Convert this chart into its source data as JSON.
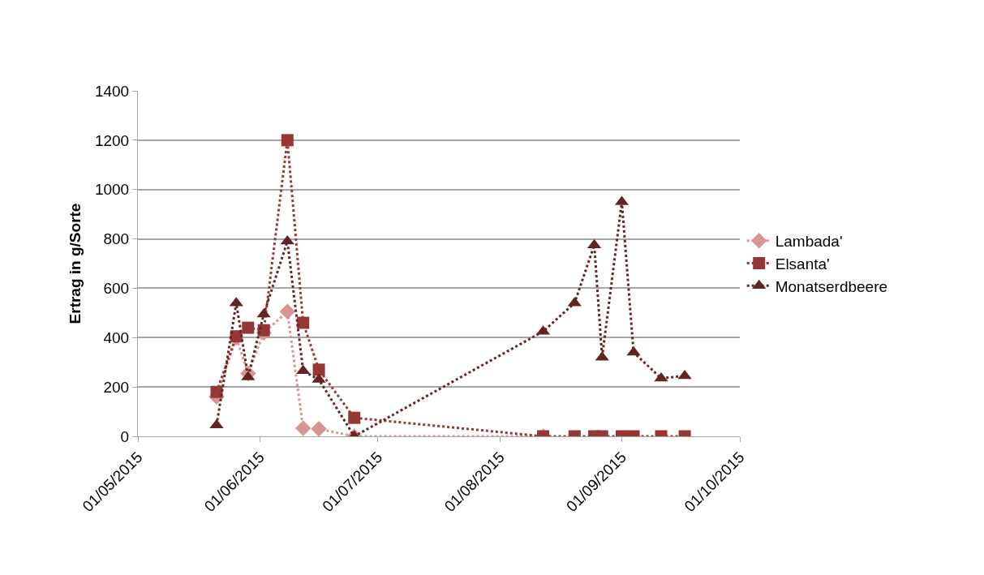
{
  "chart_data": {
    "type": "line",
    "ylabel": "Ertrag in g/Sorte",
    "xlim": [
      "2015-05-01",
      "2015-10-01"
    ],
    "xticks": [
      {
        "value": "2015-05-01",
        "label": "01/05/2015"
      },
      {
        "value": "2015-06-01",
        "label": "01/06/2015"
      },
      {
        "value": "2015-07-01",
        "label": "01/07/2015"
      },
      {
        "value": "2015-08-01",
        "label": "01/08/2015"
      },
      {
        "value": "2015-09-01",
        "label": "01/09/2015"
      },
      {
        "value": "2015-10-01",
        "label": "01/10/2015"
      }
    ],
    "ylim": [
      0,
      1400
    ],
    "yticks": [
      0,
      200,
      400,
      600,
      800,
      1000,
      1200,
      1400
    ],
    "grid": "y",
    "legend": "right",
    "line_style": "dotted",
    "series": [
      {
        "name": "Lambada'",
        "color": "#d99594",
        "marker": "diamond",
        "x": [
          "2015-05-21",
          "2015-05-26",
          "2015-05-29",
          "2015-06-02",
          "2015-06-08",
          "2015-06-12",
          "2015-06-16",
          "2015-06-25",
          "2015-08-12"
        ],
        "values": [
          160,
          400,
          255,
          420,
          505,
          33,
          30,
          0,
          0
        ]
      },
      {
        "name": "Elsanta'",
        "color": "#953735",
        "marker": "square",
        "x": [
          "2015-05-21",
          "2015-05-26",
          "2015-05-29",
          "2015-06-02",
          "2015-06-08",
          "2015-06-12",
          "2015-06-16",
          "2015-06-25",
          "2015-08-12",
          "2015-08-20",
          "2015-08-25",
          "2015-08-27",
          "2015-09-01",
          "2015-09-04",
          "2015-09-11",
          "2015-09-17"
        ],
        "values": [
          180,
          405,
          440,
          430,
          1200,
          460,
          270,
          75,
          0,
          0,
          0,
          0,
          0,
          0,
          0,
          0
        ]
      },
      {
        "name": "Monatserdbeere",
        "color": "#632523",
        "marker": "triangle",
        "x": [
          "2015-05-21",
          "2015-05-26",
          "2015-05-29",
          "2015-06-02",
          "2015-06-08",
          "2015-06-12",
          "2015-06-16",
          "2015-06-25",
          "2015-08-12",
          "2015-08-20",
          "2015-08-25",
          "2015-08-27",
          "2015-09-01",
          "2015-09-04",
          "2015-09-11",
          "2015-09-17"
        ],
        "values": [
          45,
          540,
          240,
          495,
          790,
          265,
          230,
          0,
          425,
          540,
          775,
          320,
          950,
          340,
          235,
          245
        ]
      }
    ]
  }
}
